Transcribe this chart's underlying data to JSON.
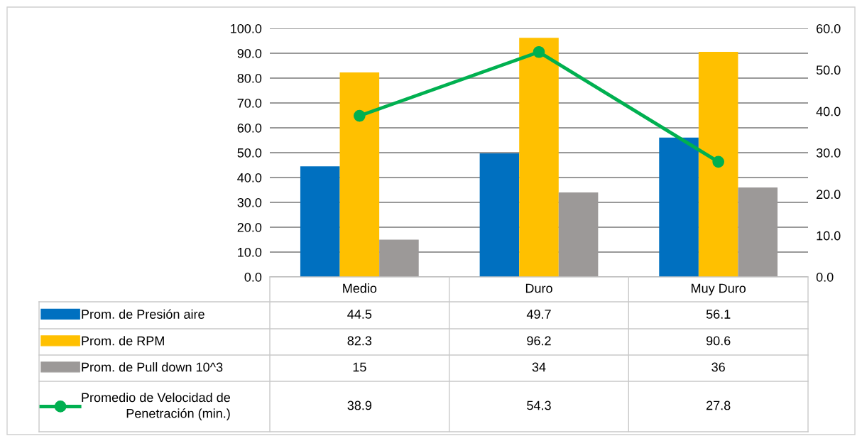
{
  "chart_data": {
    "type": "bar",
    "categories": [
      "Medio",
      "Duro",
      "Muy Duro"
    ],
    "series": [
      {
        "name": "Prom. de Presión aire",
        "color": "#0070c0",
        "values": [
          44.5,
          49.7,
          56.1
        ]
      },
      {
        "name": "Prom. de RPM",
        "color": "#ffc000",
        "values": [
          82.3,
          96.2,
          90.6
        ]
      },
      {
        "name": "Prom. de Pull down 10^3",
        "color": "#9c9998",
        "values": [
          15,
          34,
          36
        ]
      },
      {
        "name": "Promedio de Velocidad de Penetración (min.)",
        "color": "#00b050",
        "type": "line",
        "axis": "y2",
        "marker": "circle",
        "values": [
          38.9,
          54.3,
          27.8
        ]
      }
    ],
    "ylim": [
      0,
      100
    ],
    "yticks": [
      {
        "value": 0,
        "label": "0.0"
      },
      {
        "value": 10,
        "label": "10.0"
      },
      {
        "value": 20,
        "label": "20.0"
      },
      {
        "value": 30,
        "label": "30.0"
      },
      {
        "value": 40,
        "label": "40.0"
      },
      {
        "value": 50,
        "label": "50.0"
      },
      {
        "value": 60,
        "label": "60.0"
      },
      {
        "value": 70,
        "label": "70.0"
      },
      {
        "value": 80,
        "label": "80.0"
      },
      {
        "value": 90,
        "label": "90.0"
      },
      {
        "value": 100,
        "label": "100.0"
      }
    ],
    "y2lim": [
      0,
      60
    ],
    "y2ticks": [
      {
        "value": 0,
        "label": "0.0"
      },
      {
        "value": 10,
        "label": "10.0"
      },
      {
        "value": 20,
        "label": "20.0"
      },
      {
        "value": 30,
        "label": "30.0"
      },
      {
        "value": 40,
        "label": "40.0"
      },
      {
        "value": 50,
        "label": "50.0"
      },
      {
        "value": 60,
        "label": "60.0"
      }
    ],
    "grid": "y",
    "legend": "bottom",
    "data_labels": true
  }
}
